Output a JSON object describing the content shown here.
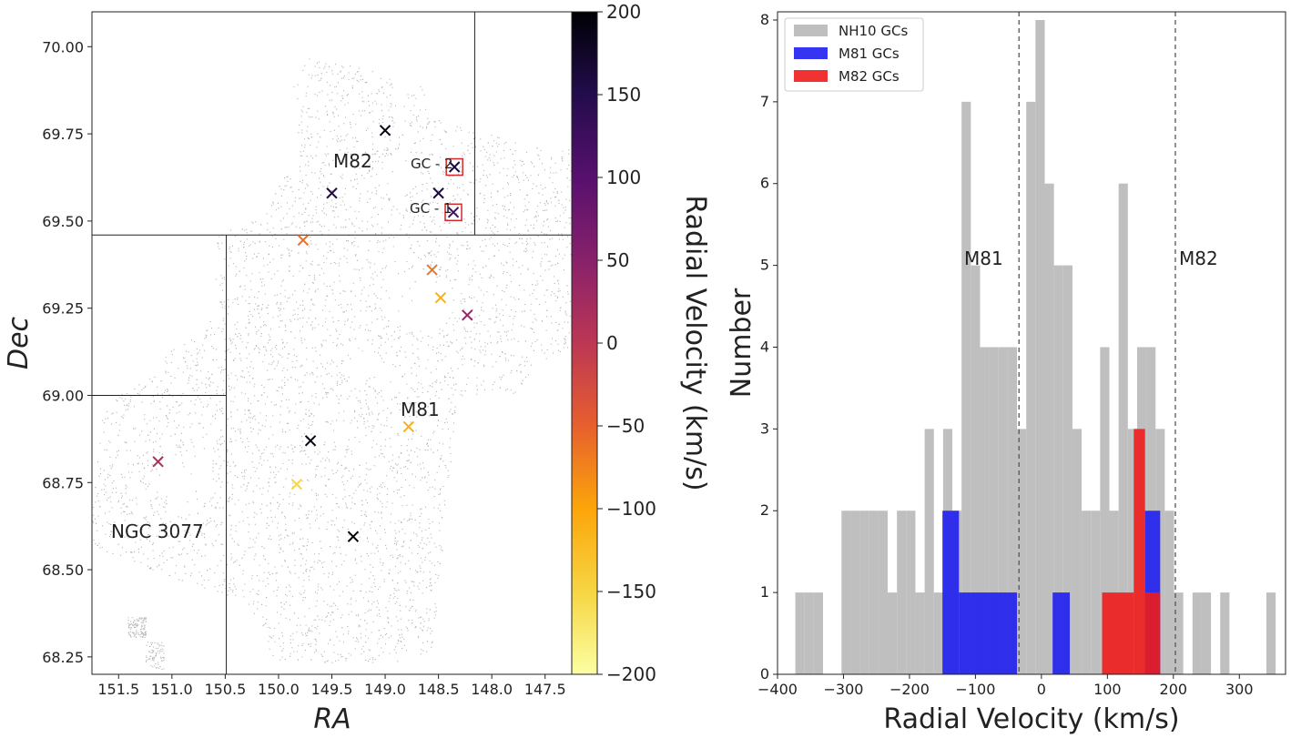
{
  "chart_data": [
    {
      "type": "scatter",
      "xlabel": "RA",
      "ylabel": "Dec",
      "xlim": [
        151.75,
        147.25
      ],
      "ylim": [
        68.2,
        70.1
      ],
      "xticks": [
        "151.5",
        "151.0",
        "150.5",
        "150.0",
        "149.5",
        "149.0",
        "148.5",
        "148.0",
        "147.5"
      ],
      "yticks": [
        "68.25",
        "68.50",
        "68.75",
        "69.00",
        "69.25",
        "69.50",
        "69.75",
        "70.00"
      ],
      "colorbar": {
        "label": "Radial Velocity (km/s)",
        "cmap": "inferno_r",
        "range": [
          -200,
          200
        ],
        "ticks": [
          "200",
          "150",
          "100",
          "50",
          "0",
          "−50",
          "−100",
          "−150",
          "−200"
        ]
      },
      "points": [
        {
          "ra": 149.0,
          "dec": 69.76,
          "v": 190
        },
        {
          "ra": 149.5,
          "dec": 69.58,
          "v": 150
        },
        {
          "ra": 148.5,
          "dec": 69.58,
          "v": 160
        },
        {
          "ra": 148.35,
          "dec": 69.655,
          "v": 160
        },
        {
          "ra": 148.36,
          "dec": 69.525,
          "v": 120
        },
        {
          "ra": 149.77,
          "dec": 69.445,
          "v": -60
        },
        {
          "ra": 148.56,
          "dec": 69.36,
          "v": -65
        },
        {
          "ra": 148.48,
          "dec": 69.28,
          "v": -110
        },
        {
          "ra": 148.23,
          "dec": 69.23,
          "v": 40
        },
        {
          "ra": 148.78,
          "dec": 68.91,
          "v": -110
        },
        {
          "ra": 149.7,
          "dec": 68.87,
          "v": 190
        },
        {
          "ra": 149.83,
          "dec": 68.745,
          "v": -150
        },
        {
          "ra": 149.3,
          "dec": 68.595,
          "v": 200
        },
        {
          "ra": 151.13,
          "dec": 68.81,
          "v": 15
        }
      ],
      "highlighted_points": [
        {
          "label": "GC - 2",
          "ra": 148.35,
          "dec": 69.655
        },
        {
          "label": "GC - 1",
          "ra": 148.36,
          "dec": 69.525
        }
      ],
      "annotations": [
        "M82",
        "M81",
        "NGC 3077",
        "GC - 2",
        "GC - 1"
      ],
      "survey_field_lines": [
        {
          "x": [
            148.16,
            148.16
          ],
          "y": [
            69.46,
            70.1
          ]
        },
        {
          "x": [
            151.75,
            147.25
          ],
          "y": [
            69.46,
            69.46
          ]
        },
        {
          "x": [
            150.49,
            150.49
          ],
          "y": [
            68.2,
            69.46
          ]
        },
        {
          "x": [
            151.75,
            150.49
          ],
          "y": [
            69.0,
            69.0
          ]
        }
      ],
      "background": "grey point cloud of survey sources"
    },
    {
      "type": "bar",
      "subtype": "histogram",
      "xlabel": "Radial Velocity (km/s)",
      "ylabel": "Number",
      "xlim": [
        -400,
        370
      ],
      "ylim": [
        0,
        8.1
      ],
      "xticks": [
        "−400",
        "−300",
        "−200",
        "−100",
        "0",
        "100",
        "200",
        "300"
      ],
      "yticks": [
        "0",
        "1",
        "2",
        "3",
        "4",
        "5",
        "6",
        "7",
        "8"
      ],
      "legend_position": "top-left",
      "vertical_lines": [
        {
          "x": -34,
          "label": "M81",
          "style": "dashed"
        },
        {
          "x": 203,
          "label": "M82",
          "style": "dashed"
        }
      ],
      "series": [
        {
          "name": "NH10 GCs",
          "color": "#bfbfbf",
          "bins": [
            {
              "x0": -373,
              "x1": -359,
              "count": 1
            },
            {
              "x0": -359,
              "x1": -345,
              "count": 1
            },
            {
              "x0": -345,
              "x1": -331,
              "count": 1
            },
            {
              "x0": -303,
              "x1": -289,
              "count": 2
            },
            {
              "x0": -289,
              "x1": -275,
              "count": 2
            },
            {
              "x0": -275,
              "x1": -261,
              "count": 2
            },
            {
              "x0": -261,
              "x1": -247,
              "count": 2
            },
            {
              "x0": -247,
              "x1": -233,
              "count": 2
            },
            {
              "x0": -233,
              "x1": -219,
              "count": 1
            },
            {
              "x0": -219,
              "x1": -205,
              "count": 2
            },
            {
              "x0": -205,
              "x1": -191,
              "count": 2
            },
            {
              "x0": -191,
              "x1": -177,
              "count": 1
            },
            {
              "x0": -177,
              "x1": -163,
              "count": 3
            },
            {
              "x0": -163,
              "x1": -149,
              "count": 1
            },
            {
              "x0": -149,
              "x1": -135,
              "count": 3
            },
            {
              "x0": -135,
              "x1": -121,
              "count": 2
            },
            {
              "x0": -121,
              "x1": -107,
              "count": 7
            },
            {
              "x0": -107,
              "x1": -93,
              "count": 5
            },
            {
              "x0": -93,
              "x1": -79,
              "count": 4
            },
            {
              "x0": -79,
              "x1": -65,
              "count": 4
            },
            {
              "x0": -65,
              "x1": -51,
              "count": 4
            },
            {
              "x0": -51,
              "x1": -37,
              "count": 4
            },
            {
              "x0": -37,
              "x1": -23,
              "count": 3
            },
            {
              "x0": -23,
              "x1": -9,
              "count": 7
            },
            {
              "x0": -9,
              "x1": 5,
              "count": 8
            },
            {
              "x0": 5,
              "x1": 19,
              "count": 6
            },
            {
              "x0": 19,
              "x1": 33,
              "count": 5
            },
            {
              "x0": 33,
              "x1": 47,
              "count": 5
            },
            {
              "x0": 47,
              "x1": 61,
              "count": 3
            },
            {
              "x0": 61,
              "x1": 75,
              "count": 2
            },
            {
              "x0": 75,
              "x1": 89,
              "count": 2
            },
            {
              "x0": 89,
              "x1": 103,
              "count": 4
            },
            {
              "x0": 103,
              "x1": 117,
              "count": 2
            },
            {
              "x0": 117,
              "x1": 131,
              "count": 6
            },
            {
              "x0": 131,
              "x1": 145,
              "count": 3
            },
            {
              "x0": 145,
              "x1": 159,
              "count": 4
            },
            {
              "x0": 159,
              "x1": 173,
              "count": 4
            },
            {
              "x0": 173,
              "x1": 187,
              "count": 3
            },
            {
              "x0": 187,
              "x1": 201,
              "count": 2
            },
            {
              "x0": 201,
              "x1": 215,
              "count": 1
            },
            {
              "x0": 229,
              "x1": 243,
              "count": 1
            },
            {
              "x0": 243,
              "x1": 257,
              "count": 1
            },
            {
              "x0": 271,
              "x1": 285,
              "count": 1
            },
            {
              "x0": 341,
              "x1": 355,
              "count": 1
            }
          ]
        },
        {
          "name": "M81 GCs",
          "color": "#1f1ff0",
          "bins": [
            {
              "x0": -150,
              "x1": -125,
              "count": 2
            },
            {
              "x0": -125,
              "x1": -37,
              "count": 1
            },
            {
              "x0": 17,
              "x1": 43,
              "count": 1
            },
            {
              "x0": 157,
              "x1": 180,
              "count": 2
            }
          ]
        },
        {
          "name": "M82 GCs",
          "color": "#ee1c1c",
          "bins": [
            {
              "x0": 92,
              "x1": 140,
              "count": 1
            },
            {
              "x0": 140,
              "x1": 157,
              "count": 3
            },
            {
              "x0": 157,
              "x1": 180,
              "count": 1
            }
          ]
        }
      ]
    }
  ]
}
